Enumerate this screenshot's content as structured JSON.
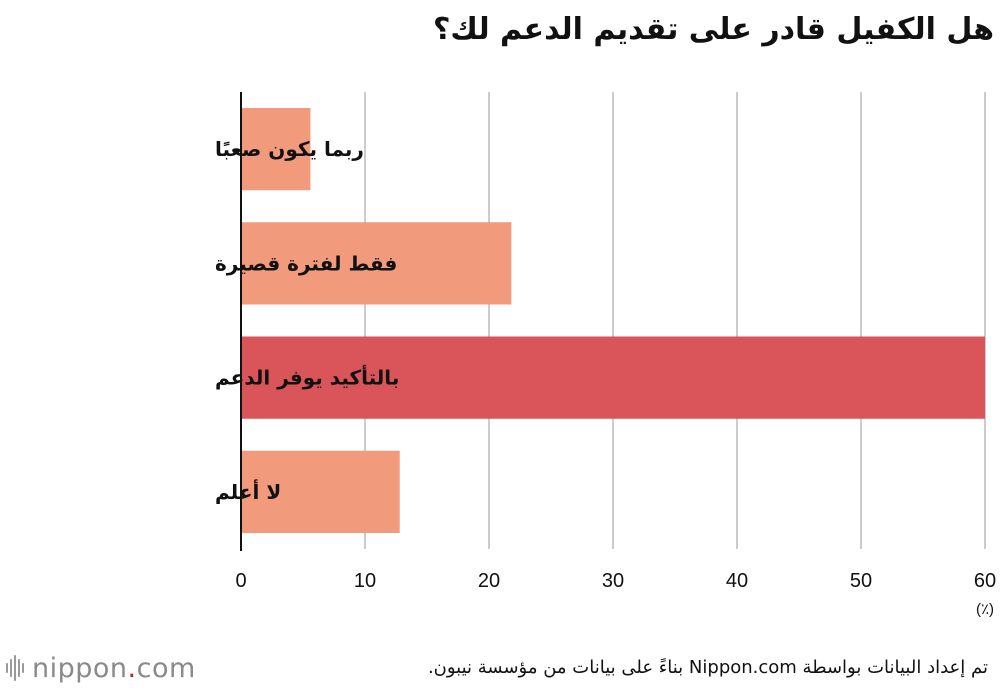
{
  "title": "هل الكفيل قادر على تقديم الدعم لك؟",
  "chart_data": {
    "type": "bar",
    "orientation": "horizontal",
    "title": "هل الكفيل قادر على تقديم الدعم لك؟",
    "categories": [
      "ربما يكون صعبًا",
      "فقط لفترة قصيرة",
      "بالتأكيد يوفر الدعم",
      "لا أعلم"
    ],
    "values": [
      5.6,
      21.8,
      60.0,
      12.8
    ],
    "bar_colors": [
      "#f19b7c",
      "#f19b7c",
      "#d9555a",
      "#f19b7c"
    ],
    "xlim": [
      0,
      60
    ],
    "xticks": [
      "0",
      "10",
      "20",
      "30",
      "40",
      "50",
      "60"
    ],
    "unit": "(٪)",
    "grid": true
  },
  "footer": {
    "logo_word": "nippon",
    "logo_dot": ".",
    "logo_tld": "com",
    "source": "تم إعداد البيانات بواسطة Nippon.com بناءً على بيانات من مؤسسة نيبون."
  }
}
